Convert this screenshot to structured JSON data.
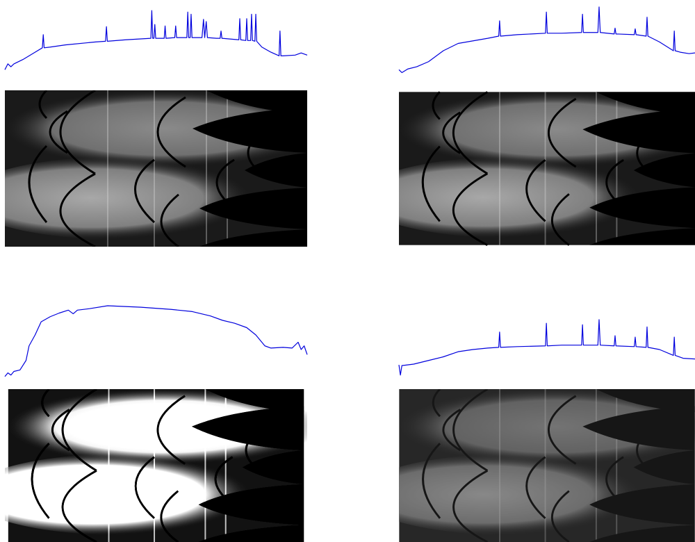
{
  "chart_data": [
    {
      "type": "line",
      "xlim": [
        0,
        100
      ],
      "ylim": [
        0,
        100
      ],
      "x": [
        0,
        1,
        2,
        3,
        6,
        10,
        12.4,
        12.7,
        13,
        15,
        20,
        30,
        33.3,
        33.6,
        33.9,
        40,
        48.3,
        48.6,
        48.9,
        49.3,
        49.6,
        49.9,
        50,
        52.7,
        53,
        53.3,
        56.2,
        56.5,
        56.8,
        60,
        60.2,
        60.5,
        60.8,
        61.3,
        61.6,
        61.9,
        65.2,
        65.7,
        66.1,
        66.6,
        67,
        70,
        71.2,
        71.5,
        71.8,
        77.4,
        77.7,
        78,
        79.7,
        80,
        80.3,
        81.3,
        81.6,
        81.9,
        82.7,
        83,
        83.3,
        85,
        88,
        90.7,
        91,
        91.3,
        92,
        96,
        98,
        100
      ],
      "series": [
        {
          "color": "#0000dd",
          "values": [
            14,
            22,
            18,
            22,
            28,
            38,
            44,
            62,
            44,
            45,
            48,
            52,
            53,
            73,
            53,
            55,
            57,
            95,
            57,
            57,
            76,
            57,
            57,
            57,
            74,
            57,
            58,
            74,
            58,
            58,
            58,
            93,
            58,
            58,
            90,
            58,
            58,
            83,
            58,
            80,
            58,
            57,
            57,
            67,
            57,
            55,
            84,
            55,
            54,
            84,
            54,
            54,
            90,
            54,
            53,
            90,
            53,
            45,
            38,
            33,
            67,
            33,
            33,
            34,
            37,
            34
          ]
        }
      ]
    },
    {
      "type": "line",
      "xlim": [
        0,
        100
      ],
      "ylim": [
        0,
        100
      ],
      "x": [
        0,
        1,
        3,
        6,
        10,
        15,
        20,
        30,
        33.7,
        34,
        34.3,
        40,
        49.5,
        49.8,
        50.1,
        55,
        61.7,
        62,
        62.3,
        67.2,
        67.6,
        68,
        72.7,
        73,
        73.3,
        79.5,
        79.8,
        80.1,
        83.5,
        83.8,
        84.1,
        88,
        92.7,
        93,
        93.3,
        95,
        98,
        100
      ],
      "series": [
        {
          "color": "#0000dd",
          "values": [
            14,
            10,
            15,
            18,
            25,
            40,
            50,
            57,
            60,
            81,
            60,
            62,
            64,
            93,
            64,
            64,
            65,
            90,
            65,
            65,
            100,
            65,
            63,
            71,
            63,
            62,
            70,
            62,
            60,
            86,
            60,
            52,
            40,
            67,
            40,
            38,
            36,
            37
          ]
        }
      ]
    },
    {
      "type": "line",
      "xlim": [
        0,
        100
      ],
      "ylim": [
        0,
        100
      ],
      "x": [
        0,
        1,
        2,
        3,
        5,
        7,
        8,
        10,
        12,
        15,
        18,
        21,
        22.6,
        24,
        28,
        34,
        45,
        55,
        62,
        68,
        72,
        76,
        80,
        83,
        86,
        88,
        92,
        95,
        97,
        98,
        99,
        100
      ],
      "series": [
        {
          "color": "#0000dd",
          "values": [
            3,
            8,
            5,
            10,
            12,
            25,
            45,
            60,
            78,
            85,
            90,
            94,
            89,
            94,
            96,
            100,
            98,
            95,
            92,
            86,
            80,
            76,
            70,
            60,
            45,
            42,
            43,
            42,
            50,
            40,
            45,
            33
          ]
        }
      ]
    },
    {
      "type": "line",
      "xlim": [
        0,
        100
      ],
      "ylim": [
        0,
        100
      ],
      "x": [
        0,
        0.5,
        1,
        5,
        10,
        15,
        20,
        25,
        30,
        33.7,
        34,
        34.3,
        40,
        49.5,
        49.8,
        50.1,
        55,
        61.7,
        62,
        62.3,
        67.2,
        67.6,
        68,
        72.7,
        73,
        73.3,
        79.5,
        79.8,
        80.1,
        83.5,
        83.8,
        84.1,
        88,
        92.7,
        93,
        93.3,
        96,
        100
      ],
      "series": [
        {
          "color": "#0000dd",
          "values": [
            19,
            5,
            18,
            20,
            25,
            30,
            37,
            40,
            42,
            43,
            64,
            43,
            44,
            45,
            76,
            45,
            46,
            46,
            74,
            46,
            46,
            81,
            46,
            45,
            59,
            45,
            44,
            57,
            44,
            43,
            71,
            43,
            40,
            32,
            57,
            32,
            28,
            27
          ]
        }
      ]
    }
  ]
}
